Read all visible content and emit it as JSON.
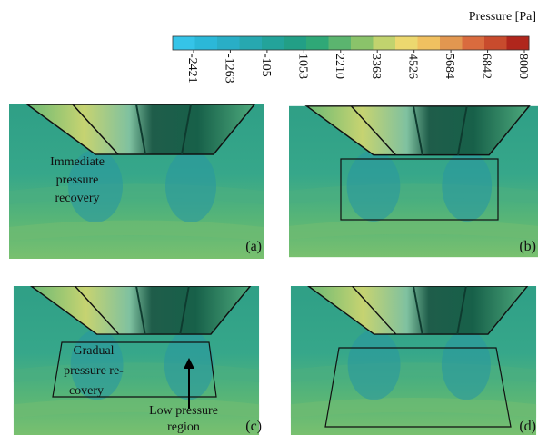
{
  "colorbar": {
    "title": "Pressure [Pa]",
    "ticks": [
      -2421,
      -1263,
      -105,
      1053,
      2210,
      3368,
      4526,
      5684,
      6842,
      8000
    ],
    "colors": [
      "#35c4e8",
      "#2bb8d8",
      "#29aec6",
      "#27a8b0",
      "#23a39a",
      "#229f86",
      "#2fa877",
      "#5bb56f",
      "#8ac36a",
      "#c1d36e",
      "#ecd86f",
      "#f0c060",
      "#e29750",
      "#d96b3e",
      "#c84b2d",
      "#b0261c"
    ]
  },
  "panels": [
    {
      "label": "(a)",
      "annotation": [
        "Immediate",
        "pressure",
        "recovery"
      ]
    },
    {
      "label": "(b)"
    },
    {
      "label": "(c)",
      "annotation": [
        "Gradual",
        "pressure re-",
        "covery"
      ],
      "callout": [
        "Low pressure",
        "region"
      ]
    },
    {
      "label": "(d)"
    }
  ]
}
